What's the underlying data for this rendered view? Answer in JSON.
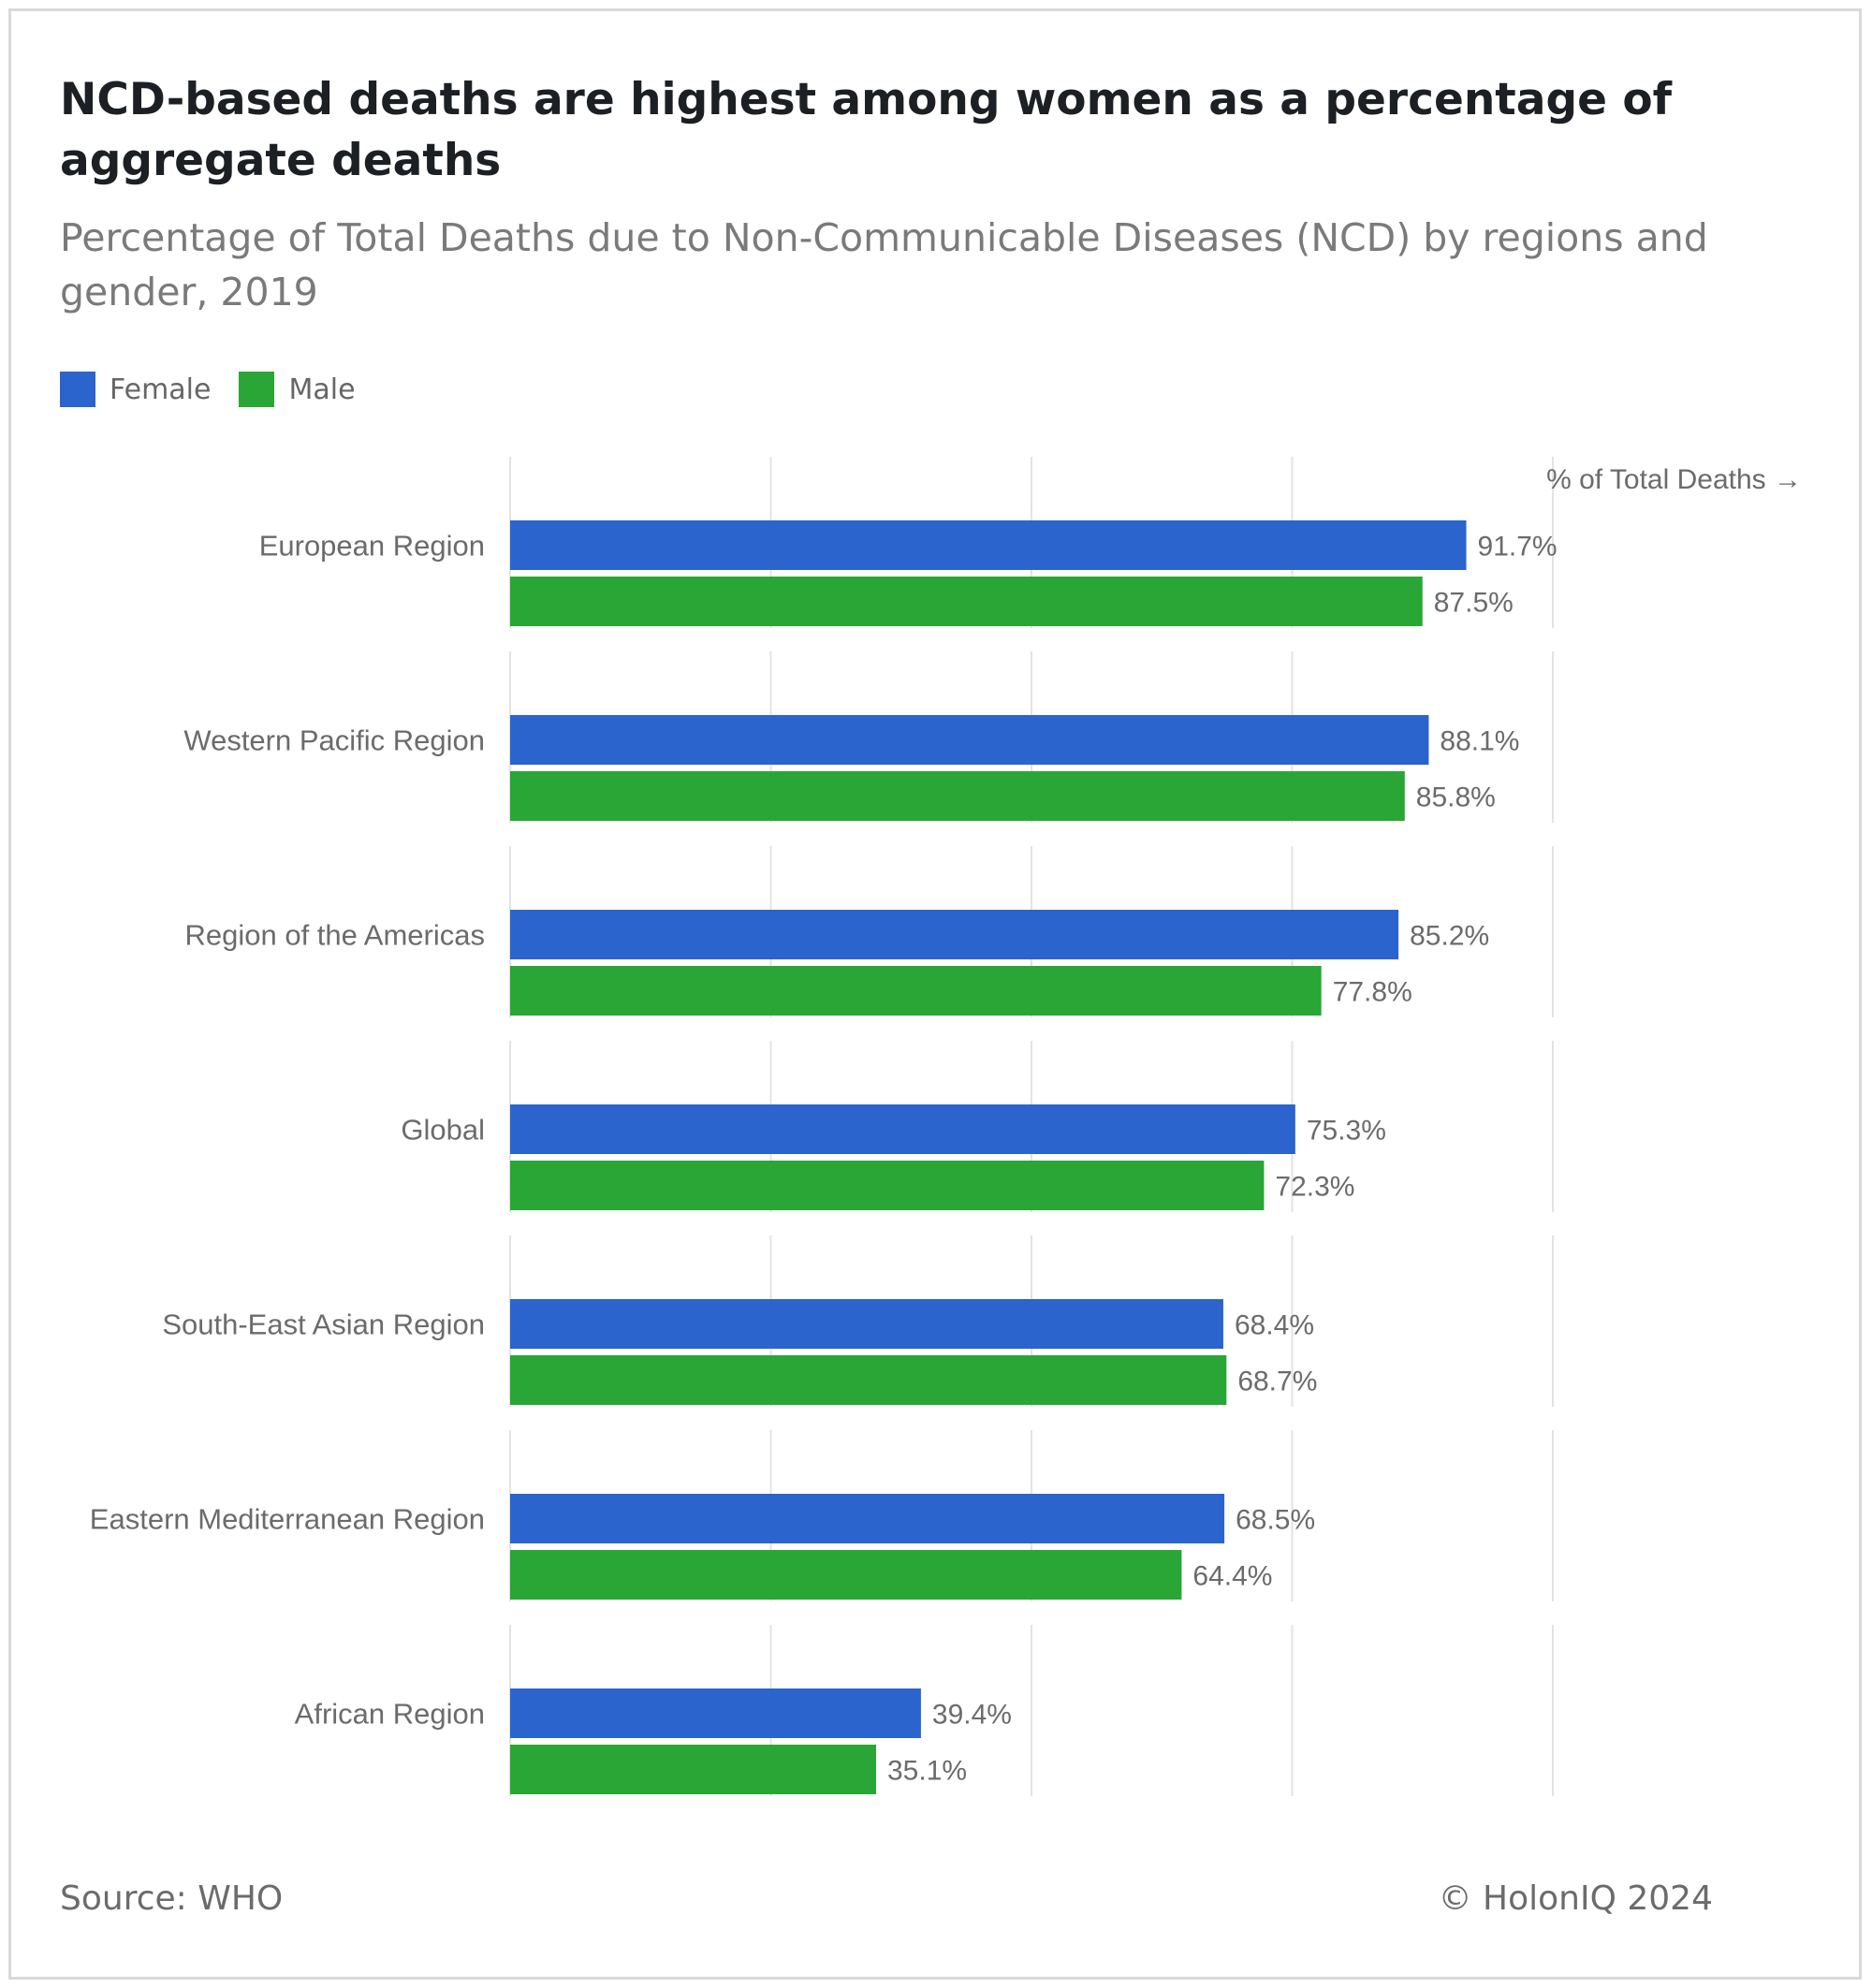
{
  "title": "NCD-based deaths are highest among women as a percentage of aggregate deaths",
  "subtitle": "Percentage of Total Deaths due to Non-Communicable Diseases (NCD) by regions and gender, 2019",
  "legend": [
    {
      "label": "Female",
      "color": "#2b64cc"
    },
    {
      "label": "Male",
      "color": "#29a635"
    }
  ],
  "footer": {
    "source": "Source: WHO",
    "copyright": "© HolonIQ 2024"
  },
  "chart_data": {
    "type": "bar",
    "orientation": "horizontal",
    "axis_label": "% of Total Deaths →",
    "xlim": [
      0,
      100
    ],
    "grid": true,
    "value_suffix": "%",
    "categories": [
      "European Region",
      "Western Pacific Region",
      "Region of the Americas",
      "Global",
      "South-East Asian Region",
      "Eastern Mediterranean Region",
      "African Region"
    ],
    "series": [
      {
        "name": "Female",
        "color": "#2b64cc",
        "values": [
          91.7,
          88.1,
          85.2,
          75.3,
          68.4,
          68.5,
          39.4
        ]
      },
      {
        "name": "Male",
        "color": "#29a635",
        "values": [
          87.5,
          85.8,
          77.8,
          72.3,
          68.7,
          64.4,
          35.1
        ]
      }
    ]
  }
}
